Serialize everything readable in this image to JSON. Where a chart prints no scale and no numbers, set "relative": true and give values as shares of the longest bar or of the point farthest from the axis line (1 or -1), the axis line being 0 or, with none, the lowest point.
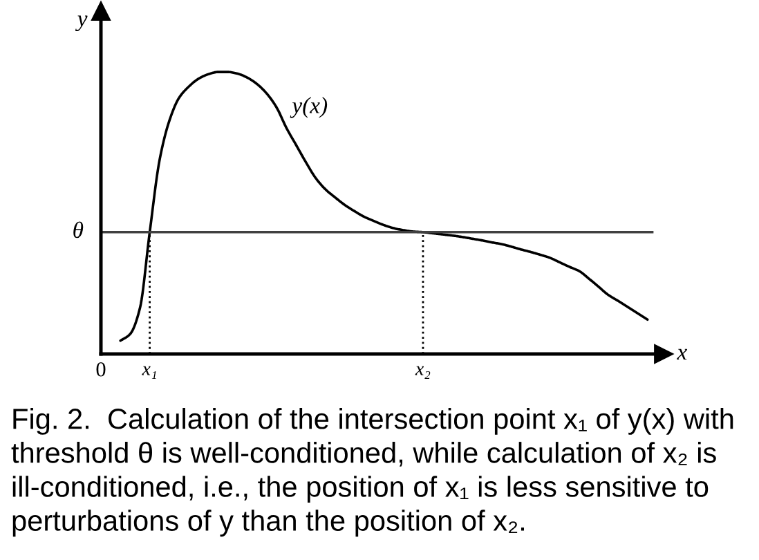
{
  "chart_data": {
    "type": "line",
    "relative": true,
    "xlabel": "x",
    "ylabel": "y",
    "categories": [
      "0",
      null,
      null,
      null,
      null,
      "x₁",
      null,
      null,
      null,
      null,
      null,
      null,
      null,
      null,
      null,
      null,
      null,
      null,
      null,
      null,
      null,
      null,
      null,
      null,
      null,
      null,
      null,
      null,
      null,
      null,
      null,
      null,
      null,
      "x₂",
      null,
      null,
      null,
      null,
      null,
      null,
      null,
      null,
      null,
      null,
      null,
      null,
      null,
      null,
      null,
      null,
      null,
      null,
      null,
      null,
      null,
      null,
      null
    ],
    "series": [
      {
        "name": "y(x)",
        "color": "#000000",
        "values": [
          null,
          null,
          0.047,
          0.071,
          0.163,
          0.432,
          0.686,
          0.826,
          0.908,
          0.948,
          0.976,
          0.992,
          1.0,
          1.0,
          0.994,
          0.98,
          0.957,
          0.923,
          0.874,
          0.802,
          0.741,
          0.68,
          0.624,
          0.584,
          0.555,
          0.528,
          0.506,
          0.486,
          0.471,
          0.457,
          0.446,
          0.439,
          0.434,
          0.432,
          0.428,
          0.424,
          0.42,
          0.415,
          0.409,
          0.403,
          0.396,
          0.39,
          0.381,
          0.371,
          0.362,
          0.352,
          0.341,
          0.325,
          0.309,
          0.294,
          0.267,
          0.238,
          0.209,
          0.188,
          0.166,
          0.144,
          0.122
        ]
      }
    ],
    "ref_lines": [
      {
        "axis": "y",
        "value": 0.432,
        "label": "θ",
        "color": "#404040",
        "line_style": "solid"
      },
      {
        "axis": "x",
        "value": "x₁",
        "color": "#000000",
        "line_style": "dotted"
      },
      {
        "axis": "x",
        "value": "x₂",
        "color": "#000000",
        "line_style": "dotted"
      }
    ],
    "annotations": [
      "Fig. 2.  Calculation of the intersection point x₁ of y(x) with threshold θ is well-conditioned, while calculation of x₂ is ill-conditioned, i.e., the position of x₁ is less sensitive to perturbations of y than the position of x₂."
    ],
    "grid": false,
    "legend": false,
    "tick_labels": "x",
    "marker": "none",
    "line_style": "solid"
  }
}
